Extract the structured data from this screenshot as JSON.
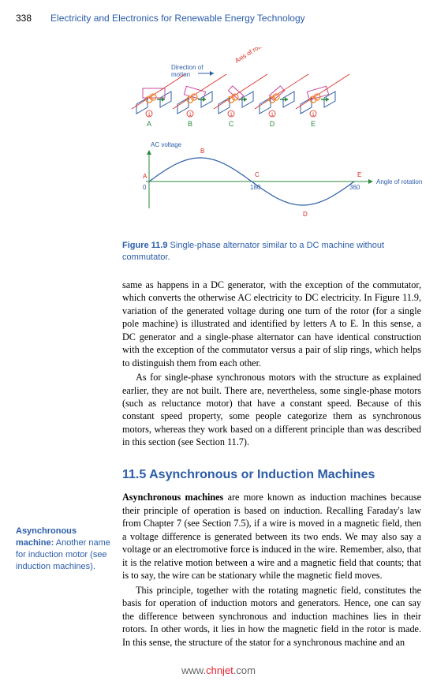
{
  "header": {
    "page_number": "338",
    "book_title": "Electricity and Electronics for Renewable Energy Technology"
  },
  "figure": {
    "top_diagram": {
      "direction_label": "Direction of\nmotion",
      "axis_label": "Axis of rotation",
      "position_labels": [
        "A",
        "B",
        "C",
        "D",
        "E"
      ],
      "colors": {
        "axis_text": "#d9261c",
        "direction_text": "#2b5ca8",
        "arrow_green": "#2b8a3e",
        "plate_blue": "#2b5ca8",
        "plate_magenta": "#c84a9e",
        "coil_orange": "#f08020",
        "bottom_numbers": "#d9261c",
        "label_green": "#2b8a3e"
      }
    },
    "wave": {
      "y_label": "AC voltage",
      "x_label": "Angle of rotation (degrees)",
      "x_ticks": [
        "0",
        "180",
        "360"
      ],
      "point_labels": [
        "A",
        "B",
        "C",
        "D",
        "E"
      ],
      "axis_color": "#2b8a3e",
      "line_color": "#2b5ca8",
      "tick_text_color": "#2b5ca8",
      "point_label_color": "#d9261c",
      "amplitude": 30,
      "wavelength": 260
    },
    "caption_label": "Figure 11.9",
    "caption_text": "Single-phase alternator similar to a DC machine without commutator."
  },
  "paragraphs": {
    "p1": "same as happens in a DC generator, with the exception of the commutator, which converts the otherwise AC electricity to DC electricity. In Figure 11.9, variation of the generated voltage during one turn of the rotor (for a single pole machine) is illustrated and identified by letters A to E. In this sense, a DC generator and a single-phase alternator can have identical construction with the exception of the commutator versus a pair of slip rings, which helps to distinguish them from each other.",
    "p2": "As for single-phase synchronous motors with the structure as explained earlier, they are not built. There are, nevertheless, some single-phase motors (such as reluctance motor) that have a constant speed. Because of this constant speed property, some people categorize them as synchronous motors, whereas they work based on a different principle than was described in this section (see Section 11.7).",
    "p3": "Asynchronous machines are more known as induction machines because their principle of operation is based on induction. Recalling Faraday's law from Chapter 7 (see Section 7.5), if a wire is moved in a magnetic field, then a voltage difference is generated between its two ends. We may also say a voltage or an electromotive force is induced in the wire. Remember, also, that it is the relative motion between a wire and a magnetic field that counts; that is to say, the wire can be stationary while the magnetic field moves.",
    "p3_bold": "Asynchronous machines",
    "p4": "This principle, together with the rotating magnetic field, constitutes the basis for operation of induction motors and generators. Hence, one can say the difference between synchronous and induction machines lies in their rotors. In other words, it lies in how the magnetic field in the rotor is made. In this sense, the structure of the stator for a synchronous machine and an"
  },
  "section": {
    "number": "11.5",
    "title": "Asynchronous or Induction Machines"
  },
  "sidenote": {
    "term": "Asynchronous machine:",
    "definition": "Another name for induction motor (see induction machines)."
  },
  "watermark": {
    "a": "www.",
    "b": "chnjet",
    "c": ".com"
  }
}
